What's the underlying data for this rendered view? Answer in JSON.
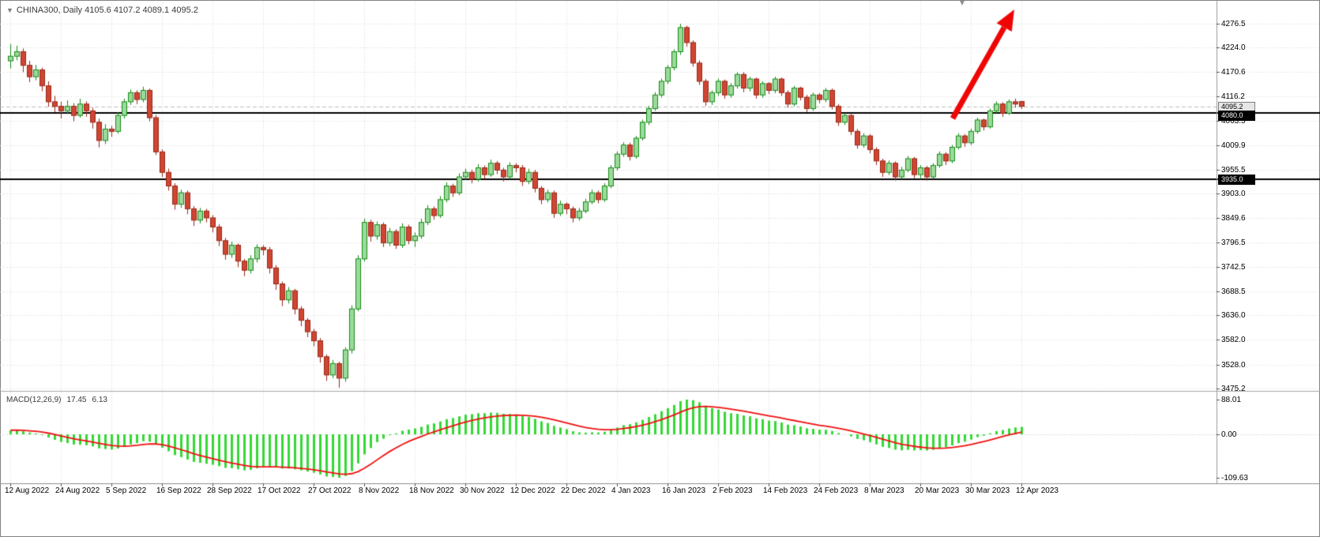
{
  "header": {
    "dropdown_icon": "▼",
    "symbol_text": "CHINA300, Daily 4105.6 4107.2 4089.1 4095.2",
    "shift_icon": "▾"
  },
  "price_axis": {
    "tags": [
      {
        "label": "4095.2",
        "value": 4095.2,
        "bg": "#e6e6e6",
        "fg": "#000000",
        "border": "#808080",
        "name": "current-price-tag"
      },
      {
        "label": "4080.0",
        "value": 4080.0,
        "bg": "#000000",
        "fg": "#ffffff",
        "border": "#000000",
        "name": "hline-price-tag-4080"
      },
      {
        "label": "3935.0",
        "value": 3935.0,
        "bg": "#000000",
        "fg": "#ffffff",
        "border": "#000000",
        "name": "hline-price-tag-3935"
      }
    ]
  },
  "macd_panel": {
    "label_name": "MACD(12,26,9)",
    "label_main": "17.45",
    "label_signal": "6.13",
    "axis_labels": [
      "88.01",
      "0.00",
      "-109.63"
    ],
    "axis_values": [
      88.01,
      0,
      -109.63
    ]
  },
  "colors": {
    "bull_fill": "#9ada9a",
    "bull_border": "#178a17",
    "bear_fill": "#cf4632",
    "bear_border": "#992818",
    "macd_bar": "#35d835",
    "macd_signal": "#f01010",
    "grid": "#d8d8d8",
    "hline": "#000000",
    "arrow": "#f00505",
    "axis_line": "#9a9a9a",
    "current_line": "#bdbdbd",
    "text": "#000000"
  },
  "chart_data": {
    "type": "candlestick",
    "title": "CHINA300, Daily",
    "symbol": "CHINA300",
    "timeframe": "Daily",
    "current_bar": {
      "open": 4105.6,
      "high": 4107.2,
      "low": 4089.1,
      "close": 4095.2
    },
    "current_price": 4095.2,
    "price_ticks": [
      4276.5,
      4224.0,
      4170.6,
      4116.2,
      4063.5,
      4009.9,
      3955.5,
      3903.0,
      3849.6,
      3796.5,
      3742.5,
      3688.5,
      3636.0,
      3582.0,
      3528.0,
      3475.2
    ],
    "horizontal_lines": [
      4080.0,
      3935.0
    ],
    "date_labels": [
      "12 Aug 2022",
      "24 Aug 2022",
      "5 Sep 2022",
      "16 Sep 2022",
      "28 Sep 2022",
      "17 Oct 2022",
      "27 Oct 2022",
      "8 Nov 2022",
      "18 Nov 2022",
      "30 Nov 2022",
      "12 Dec 2022",
      "22 Dec 2022",
      "4 Jan 2023",
      "16 Jan 2023",
      "2 Feb 2023",
      "14 Feb 2023",
      "24 Feb 2023",
      "8 Mar 2023",
      "20 Mar 2023",
      "30 Mar 2023",
      "12 Apr 2023"
    ],
    "date_label_indices": [
      0,
      8,
      16,
      24,
      32,
      40,
      48,
      56,
      64,
      72,
      80,
      88,
      96,
      104,
      112,
      120,
      128,
      136,
      144,
      152,
      160
    ],
    "candles": [
      [
        4195,
        4232,
        4178,
        4205
      ],
      [
        4205,
        4228,
        4196,
        4215
      ],
      [
        4215,
        4222,
        4170,
        4185
      ],
      [
        4185,
        4195,
        4148,
        4160
      ],
      [
        4160,
        4186,
        4152,
        4175
      ],
      [
        4175,
        4180,
        4128,
        4140
      ],
      [
        4140,
        4150,
        4094,
        4105
      ],
      [
        4105,
        4118,
        4082,
        4095
      ],
      [
        4095,
        4105,
        4068,
        4085
      ],
      [
        4085,
        4108,
        4078,
        4095
      ],
      [
        4095,
        4102,
        4062,
        4075
      ],
      [
        4075,
        4112,
        4070,
        4100
      ],
      [
        4100,
        4106,
        4072,
        4085
      ],
      [
        4085,
        4092,
        4046,
        4060
      ],
      [
        4060,
        4068,
        4005,
        4020
      ],
      [
        4020,
        4056,
        4012,
        4045
      ],
      [
        4045,
        4052,
        4028,
        4040
      ],
      [
        4040,
        4082,
        4035,
        4075
      ],
      [
        4075,
        4112,
        4068,
        4105
      ],
      [
        4105,
        4132,
        4098,
        4125
      ],
      [
        4125,
        4130,
        4100,
        4110
      ],
      [
        4110,
        4138,
        4104,
        4130
      ],
      [
        4130,
        4134,
        4062,
        4070
      ],
      [
        4070,
        4076,
        3988,
        3995
      ],
      [
        3995,
        4000,
        3940,
        3950
      ],
      [
        3950,
        3958,
        3910,
        3920
      ],
      [
        3920,
        3926,
        3868,
        3880
      ],
      [
        3880,
        3912,
        3872,
        3905
      ],
      [
        3905,
        3910,
        3858,
        3870
      ],
      [
        3870,
        3876,
        3832,
        3845
      ],
      [
        3845,
        3872,
        3838,
        3865
      ],
      [
        3865,
        3870,
        3840,
        3850
      ],
      [
        3850,
        3856,
        3818,
        3830
      ],
      [
        3830,
        3836,
        3788,
        3800
      ],
      [
        3800,
        3806,
        3758,
        3770
      ],
      [
        3770,
        3798,
        3762,
        3790
      ],
      [
        3790,
        3794,
        3742,
        3755
      ],
      [
        3755,
        3760,
        3722,
        3735
      ],
      [
        3735,
        3768,
        3728,
        3760
      ],
      [
        3760,
        3792,
        3752,
        3785
      ],
      [
        3785,
        3790,
        3768,
        3780
      ],
      [
        3780,
        3786,
        3728,
        3740
      ],
      [
        3740,
        3746,
        3692,
        3705
      ],
      [
        3705,
        3710,
        3656,
        3670
      ],
      [
        3670,
        3698,
        3662,
        3690
      ],
      [
        3690,
        3694,
        3638,
        3650
      ],
      [
        3650,
        3656,
        3612,
        3625
      ],
      [
        3625,
        3630,
        3588,
        3600
      ],
      [
        3600,
        3606,
        3568,
        3580
      ],
      [
        3580,
        3586,
        3532,
        3545
      ],
      [
        3545,
        3550,
        3492,
        3505
      ],
      [
        3505,
        3538,
        3498,
        3530
      ],
      [
        3530,
        3534,
        3477,
        3498
      ],
      [
        3498,
        3566,
        3490,
        3560
      ],
      [
        3560,
        3658,
        3552,
        3650
      ],
      [
        3650,
        3768,
        3645,
        3760
      ],
      [
        3760,
        3848,
        3754,
        3840
      ],
      [
        3840,
        3846,
        3798,
        3810
      ],
      [
        3810,
        3842,
        3802,
        3835
      ],
      [
        3835,
        3840,
        3786,
        3795
      ],
      [
        3795,
        3828,
        3788,
        3820
      ],
      [
        3820,
        3825,
        3782,
        3790
      ],
      [
        3790,
        3838,
        3784,
        3830
      ],
      [
        3830,
        3835,
        3792,
        3800
      ],
      [
        3800,
        3818,
        3786,
        3810
      ],
      [
        3810,
        3848,
        3804,
        3840
      ],
      [
        3840,
        3878,
        3834,
        3870
      ],
      [
        3870,
        3875,
        3846,
        3855
      ],
      [
        3855,
        3898,
        3850,
        3890
      ],
      [
        3890,
        3928,
        3884,
        3920
      ],
      [
        3920,
        3925,
        3896,
        3905
      ],
      [
        3905,
        3948,
        3900,
        3940
      ],
      [
        3940,
        3958,
        3934,
        3950
      ],
      [
        3950,
        3956,
        3926,
        3935
      ],
      [
        3935,
        3968,
        3930,
        3960
      ],
      [
        3960,
        3965,
        3936,
        3945
      ],
      [
        3945,
        3978,
        3940,
        3970
      ],
      [
        3970,
        3975,
        3946,
        3955
      ],
      [
        3955,
        3960,
        3930,
        3940
      ],
      [
        3940,
        3972,
        3935,
        3965
      ],
      [
        3965,
        3970,
        3950,
        3960
      ],
      [
        3960,
        3966,
        3920,
        3930
      ],
      [
        3930,
        3958,
        3924,
        3950
      ],
      [
        3950,
        3955,
        3906,
        3915
      ],
      [
        3915,
        3920,
        3880,
        3890
      ],
      [
        3890,
        3912,
        3884,
        3905
      ],
      [
        3905,
        3910,
        3850,
        3860
      ],
      [
        3860,
        3888,
        3854,
        3880
      ],
      [
        3880,
        3884,
        3858,
        3870
      ],
      [
        3870,
        3875,
        3840,
        3850
      ],
      [
        3850,
        3872,
        3844,
        3865
      ],
      [
        3865,
        3892,
        3860,
        3885
      ],
      [
        3885,
        3912,
        3880,
        3905
      ],
      [
        3905,
        3910,
        3882,
        3890
      ],
      [
        3890,
        3926,
        3885,
        3920
      ],
      [
        3920,
        3966,
        3915,
        3960
      ],
      [
        3960,
        3996,
        3954,
        3990
      ],
      [
        3990,
        4016,
        3984,
        4010
      ],
      [
        4010,
        4015,
        3976,
        3985
      ],
      [
        3985,
        4030,
        3980,
        4025
      ],
      [
        4025,
        4066,
        4020,
        4060
      ],
      [
        4060,
        4096,
        4054,
        4090
      ],
      [
        4090,
        4126,
        4085,
        4120
      ],
      [
        4120,
        4156,
        4114,
        4150
      ],
      [
        4150,
        4186,
        4144,
        4180
      ],
      [
        4180,
        4220,
        4174,
        4215
      ],
      [
        4215,
        4276.5,
        4208,
        4268
      ],
      [
        4268,
        4272,
        4226,
        4235
      ],
      [
        4235,
        4240,
        4182,
        4190
      ],
      [
        4190,
        4196,
        4142,
        4150
      ],
      [
        4150,
        4155,
        4096,
        4105
      ],
      [
        4105,
        4130,
        4098,
        4125
      ],
      [
        4125,
        4156,
        4118,
        4150
      ],
      [
        4150,
        4154,
        4112,
        4120
      ],
      [
        4120,
        4146,
        4114,
        4140
      ],
      [
        4140,
        4170,
        4134,
        4165
      ],
      [
        4165,
        4170,
        4126,
        4135
      ],
      [
        4135,
        4160,
        4128,
        4155
      ],
      [
        4155,
        4158,
        4112,
        4120
      ],
      [
        4120,
        4150,
        4114,
        4145
      ],
      [
        4145,
        4148,
        4122,
        4130
      ],
      [
        4130,
        4160,
        4124,
        4155
      ],
      [
        4155,
        4158,
        4118,
        4125
      ],
      [
        4125,
        4130,
        4092,
        4100
      ],
      [
        4100,
        4140,
        4095,
        4135
      ],
      [
        4135,
        4138,
        4108,
        4115
      ],
      [
        4115,
        4120,
        4082,
        4090
      ],
      [
        4090,
        4125,
        4085,
        4120
      ],
      [
        4120,
        4124,
        4102,
        4110
      ],
      [
        4110,
        4135,
        4104,
        4130
      ],
      [
        4130,
        4134,
        4088,
        4095
      ],
      [
        4095,
        4100,
        4052,
        4060
      ],
      [
        4060,
        4080,
        4054,
        4075
      ],
      [
        4075,
        4078,
        4032,
        4040
      ],
      [
        4040,
        4045,
        4002,
        4010
      ],
      [
        4010,
        4036,
        4004,
        4030
      ],
      [
        4030,
        4034,
        3992,
        4000
      ],
      [
        4000,
        4005,
        3966,
        3975
      ],
      [
        3975,
        3980,
        3940,
        3950
      ],
      [
        3950,
        3976,
        3944,
        3970
      ],
      [
        3970,
        3974,
        3932,
        3940
      ],
      [
        3940,
        3962,
        3935,
        3955
      ],
      [
        3955,
        3986,
        3950,
        3980
      ],
      [
        3980,
        3984,
        3937,
        3945
      ],
      [
        3945,
        3966,
        3935,
        3960
      ],
      [
        3960,
        3964,
        3932,
        3940
      ],
      [
        3940,
        3970,
        3936,
        3965
      ],
      [
        3965,
        3996,
        3960,
        3990
      ],
      [
        3990,
        3994,
        3966,
        3975
      ],
      [
        3975,
        4010,
        3970,
        4005
      ],
      [
        4005,
        4036,
        4000,
        4030
      ],
      [
        4030,
        4034,
        4006,
        4015
      ],
      [
        4015,
        4046,
        4010,
        4040
      ],
      [
        4040,
        4070,
        4035,
        4065
      ],
      [
        4065,
        4068,
        4042,
        4050
      ],
      [
        4050,
        4090,
        4046,
        4085
      ],
      [
        4085,
        4106,
        4080,
        4100
      ],
      [
        4100,
        4104,
        4072,
        4080
      ],
      [
        4080,
        4110,
        4076,
        4105
      ],
      [
        4105,
        4112,
        4092,
        4100
      ],
      [
        4105.6,
        4107.2,
        4089.1,
        4095.2
      ]
    ],
    "indicator": {
      "name": "MACD",
      "params": [
        12,
        26,
        9
      ],
      "last_main": 17.45,
      "last_signal": 6.13,
      "axis_range": [
        88.01,
        0,
        -109.63
      ]
    },
    "annotation_arrow": {
      "direction": "up-right",
      "color": "#f00505"
    }
  }
}
